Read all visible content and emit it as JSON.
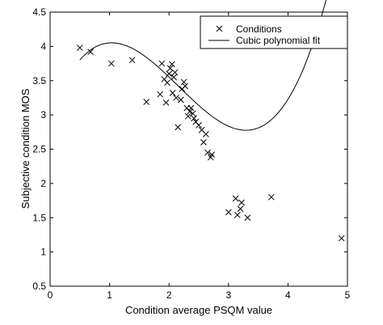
{
  "chart_data": {
    "type": "scatter",
    "xlabel": "Condition average PSQM value",
    "ylabel": "Subjective condition MOS",
    "xlim": [
      0,
      5
    ],
    "ylim": [
      0.5,
      4.5
    ],
    "xticks": [
      "0",
      "1",
      "2",
      "3",
      "4",
      "5"
    ],
    "yticks": [
      "0.5",
      "1",
      "1.5",
      "2",
      "2.5",
      "3",
      "3.5",
      "4",
      "4.5"
    ],
    "grid": false,
    "legend_position": "top-right",
    "series": [
      {
        "name": "Conditions",
        "marker": "x",
        "points": [
          [
            0.5,
            3.98
          ],
          [
            0.68,
            3.92
          ],
          [
            1.03,
            3.75
          ],
          [
            1.38,
            3.8
          ],
          [
            1.62,
            3.19
          ],
          [
            1.85,
            3.3
          ],
          [
            1.88,
            3.75
          ],
          [
            1.92,
            3.52
          ],
          [
            1.95,
            3.18
          ],
          [
            1.97,
            3.47
          ],
          [
            2.0,
            3.6
          ],
          [
            2.02,
            3.68
          ],
          [
            2.05,
            3.74
          ],
          [
            2.06,
            3.32
          ],
          [
            2.08,
            3.55
          ],
          [
            2.1,
            3.62
          ],
          [
            2.12,
            3.25
          ],
          [
            2.15,
            2.82
          ],
          [
            2.2,
            3.22
          ],
          [
            2.22,
            3.38
          ],
          [
            2.25,
            3.48
          ],
          [
            2.27,
            3.42
          ],
          [
            2.3,
            3.1
          ],
          [
            2.32,
            2.98
          ],
          [
            2.35,
            3.05
          ],
          [
            2.37,
            3.1
          ],
          [
            2.4,
            3.02
          ],
          [
            2.42,
            2.95
          ],
          [
            2.45,
            2.9
          ],
          [
            2.5,
            2.85
          ],
          [
            2.55,
            2.78
          ],
          [
            2.58,
            2.6
          ],
          [
            2.62,
            2.72
          ],
          [
            2.65,
            2.45
          ],
          [
            2.7,
            2.38
          ],
          [
            2.72,
            2.42
          ],
          [
            3.0,
            1.58
          ],
          [
            3.12,
            1.78
          ],
          [
            3.15,
            1.54
          ],
          [
            3.2,
            1.63
          ],
          [
            3.22,
            1.72
          ],
          [
            3.32,
            1.5
          ],
          [
            3.72,
            1.8
          ],
          [
            4.9,
            1.2
          ]
        ]
      },
      {
        "name": "Cubic polynomial fit",
        "style": "line",
        "x_range": [
          0.5,
          4.9
        ],
        "coefficients_cubic": [
          0.2216,
          -1.4393,
          2.2686,
          3.0
        ]
      }
    ]
  }
}
